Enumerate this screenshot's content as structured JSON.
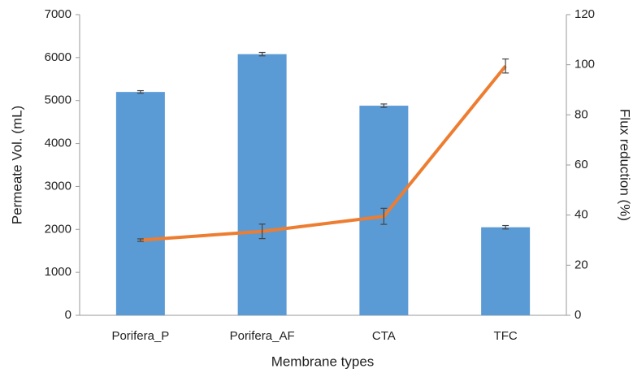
{
  "chart_data": {
    "type": "bar-line",
    "categories": [
      "Porifera_P",
      "Porifera_AF",
      "CTA",
      "TFC"
    ],
    "x_label": "Membrane types",
    "y_label": "Permeate Vol. (mL)",
    "y2_label": "Flux reduction (%)",
    "ylim": [
      0,
      7000
    ],
    "yticks": [
      0,
      1000,
      2000,
      3000,
      4000,
      5000,
      6000,
      7000
    ],
    "y2lim": [
      0,
      120
    ],
    "y2ticks": [
      0,
      20,
      40,
      60,
      80,
      100,
      120
    ],
    "series": [
      {
        "type": "bar",
        "color": "#5b9bd5",
        "values": [
          5200,
          6080,
          4880,
          2050
        ],
        "errors": [
          30,
          40,
          40,
          40
        ]
      },
      {
        "type": "line",
        "axis": "y2",
        "color": "#ed7d31",
        "values": [
          30,
          33.5,
          39.5,
          99.5
        ],
        "errors": [
          0.5,
          2.9,
          3.2,
          2.8
        ]
      }
    ]
  }
}
